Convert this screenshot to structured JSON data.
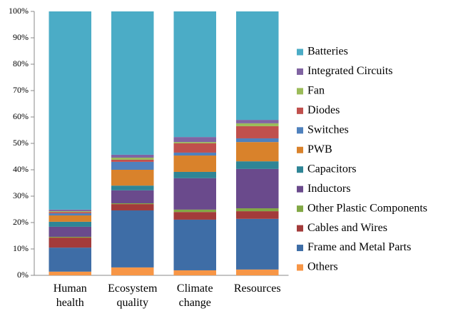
{
  "chart_data": {
    "type": "stacked_bar_100",
    "categories": [
      "Human health",
      "Ecosystem quality",
      "Climate change",
      "Resources"
    ],
    "series": [
      {
        "name": "Others",
        "color": "#f79646",
        "values": [
          1.4,
          3.0,
          1.9,
          2.2
        ]
      },
      {
        "name": "Frame and Metal Parts",
        "color": "#3e6da6",
        "values": [
          9.1,
          21.6,
          19.2,
          19.2
        ]
      },
      {
        "name": "Cables and Wires",
        "color": "#a33b3a",
        "values": [
          3.8,
          2.4,
          2.9,
          2.9
        ]
      },
      {
        "name": "Other Plastic Components",
        "color": "#82a845",
        "values": [
          0.3,
          0.3,
          0.9,
          1.1
        ]
      },
      {
        "name": "Inductors",
        "color": "#6a4a8c",
        "values": [
          3.8,
          4.9,
          11.9,
          14.9
        ]
      },
      {
        "name": "Capacitors",
        "color": "#2f8596",
        "values": [
          1.9,
          1.8,
          2.4,
          2.9
        ]
      },
      {
        "name": "PWB",
        "color": "#d9822b",
        "values": [
          2.4,
          6.0,
          6.2,
          7.3
        ]
      },
      {
        "name": "Switches",
        "color": "#4f81bd",
        "values": [
          0.8,
          3.0,
          1.1,
          1.4
        ]
      },
      {
        "name": "Diodes",
        "color": "#c0504d",
        "values": [
          0.5,
          0.8,
          3.5,
          4.6
        ]
      },
      {
        "name": "Fan",
        "color": "#9bbb59",
        "values": [
          0.3,
          0.8,
          0.5,
          1.1
        ]
      },
      {
        "name": "Integrated Circuits",
        "color": "#8064a2",
        "values": [
          0.6,
          1.1,
          1.9,
          1.3
        ]
      },
      {
        "name": "Batteries",
        "color": "#4bacc6",
        "values": [
          75.1,
          54.3,
          47.6,
          41.1
        ]
      }
    ],
    "ylim": [
      0,
      100
    ],
    "yticks": [
      {
        "value": 0,
        "label": "0%"
      },
      {
        "value": 10,
        "label": "10%"
      },
      {
        "value": 20,
        "label": "20%"
      },
      {
        "value": 30,
        "label": "30%"
      },
      {
        "value": 40,
        "label": "40%"
      },
      {
        "value": 50,
        "label": "50%"
      },
      {
        "value": 60,
        "label": "60%"
      },
      {
        "value": 70,
        "label": "70%"
      },
      {
        "value": 80,
        "label": "80%"
      },
      {
        "value": 90,
        "label": "90%"
      },
      {
        "value": 100,
        "label": "100%"
      }
    ],
    "grid": false,
    "legend": "right"
  }
}
